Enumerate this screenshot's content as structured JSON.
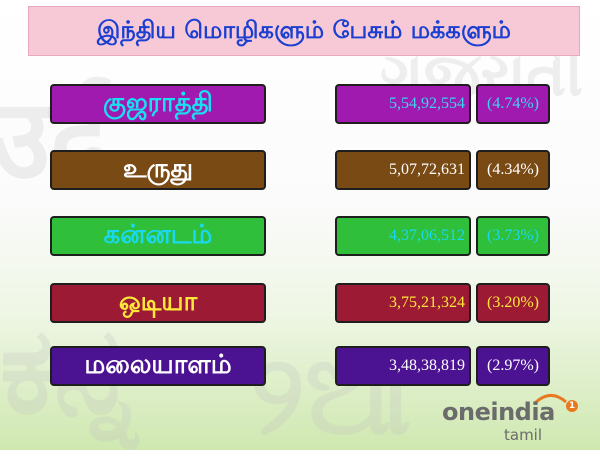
{
  "title": "இந்திய மொழிகளும் பேசும் மக்களும்",
  "rows": [
    {
      "language": "குஜராத்தி",
      "speakers": "5,54,92,554",
      "percent": "(4.74%)",
      "percent_value": 4.74,
      "bg": "#a01ab0",
      "label_color": "#19e0f0",
      "number_color": "#3ad5f0",
      "pct_color": "#3ad5f0"
    },
    {
      "language": "உருது",
      "speakers": "5,07,72,631",
      "percent": "(4.34%)",
      "percent_value": 4.34,
      "bg": "#7a4a14",
      "label_color": "#ffffff",
      "number_color": "#ffffff",
      "pct_color": "#ffffff"
    },
    {
      "language": "கன்னடம்",
      "speakers": "4,37,06,512",
      "percent": "(3.73%)",
      "percent_value": 3.73,
      "bg": "#2fbf3a",
      "label_color": "#19d8ef",
      "number_color": "#19d8ef",
      "pct_color": "#19d8ef"
    },
    {
      "language": "ஒடியா",
      "speakers": "3,75,21,324",
      "percent": "(3.20%)",
      "percent_value": 3.2,
      "bg": "#9c1a34",
      "label_color": "#ffe83a",
      "number_color": "#ffe83a",
      "pct_color": "#ffe83a"
    },
    {
      "language": "மலையாளம்",
      "speakers": "3,48,38,819",
      "percent": "(2.97%)",
      "percent_value": 2.97,
      "bg": "#4b1292",
      "label_color": "#ffffff",
      "number_color": "#ffffff",
      "pct_color": "#ffffff"
    }
  ],
  "logo": {
    "main": "oneindia",
    "sub": "tamil",
    "badge": "1"
  }
}
